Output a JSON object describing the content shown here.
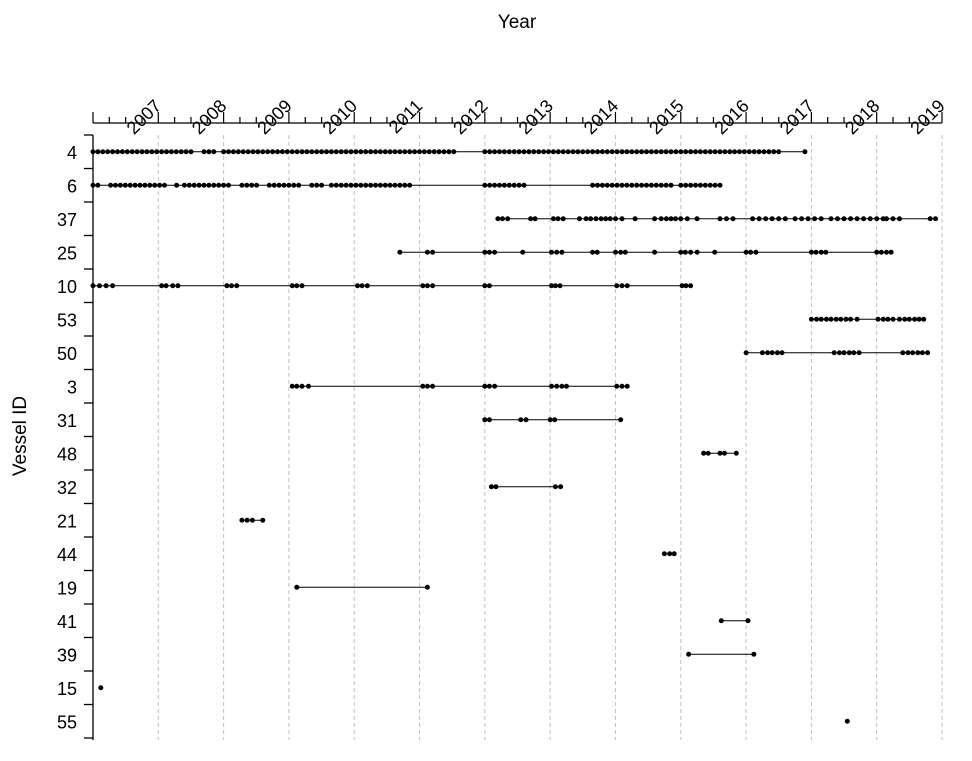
{
  "chart_data": {
    "type": "scatter",
    "subtype": "event-timeline (dot strip per vessel)",
    "title": "",
    "xlabel": "Year",
    "ylabel": "Vessel ID",
    "x_axis_position": "top",
    "xlim": [
      2006.0,
      2019.0
    ],
    "x_ticks": [
      2007,
      2008,
      2009,
      2010,
      2011,
      2012,
      2013,
      2014,
      2015,
      2016,
      2017,
      2018,
      2019
    ],
    "x_minor_ticks_per_year": 4,
    "grid": {
      "vertical": true,
      "style": "dashed",
      "color": "#c0c0c0"
    },
    "categories": [
      "4",
      "6",
      "37",
      "25",
      "10",
      "53",
      "50",
      "3",
      "31",
      "48",
      "32",
      "21",
      "44",
      "19",
      "41",
      "39",
      "15",
      "55"
    ],
    "marker": {
      "shape": "circle",
      "color": "#000000",
      "size": 5
    },
    "note": "Each dot is an observation date (decimal year). Short horizontal lines connect consecutive dots within a row.",
    "series": [
      {
        "name": "4",
        "segments": [
          [
            2006.0,
            2007.5
          ],
          [
            2007.7,
            2007.85
          ],
          [
            2008.0,
            2011.55
          ],
          [
            2012.0,
            2016.55
          ],
          [
            2016.9,
            2016.97
          ]
        ]
      },
      {
        "name": "6",
        "segments": [
          [
            2006.0,
            2006.12
          ],
          [
            2006.27,
            2007.15
          ],
          [
            2007.28,
            2007.28
          ],
          [
            2007.4,
            2008.12
          ],
          [
            2008.28,
            2008.55
          ],
          [
            2008.7,
            2009.15
          ],
          [
            2009.35,
            2009.5
          ],
          [
            2009.65,
            2010.85
          ],
          [
            2012.0,
            2012.62
          ],
          [
            2013.65,
            2014.88
          ],
          [
            2015.0,
            2015.62
          ]
        ]
      },
      {
        "name": "37",
        "points": [
          2012.2,
          2012.27,
          2012.35,
          2012.7,
          2012.77,
          2013.05,
          2013.12,
          2013.2,
          2013.45,
          2013.55,
          2013.62,
          2013.7,
          2013.78,
          2013.85,
          2013.92,
          2014.0,
          2014.1,
          2014.3,
          2014.6,
          2014.7,
          2014.78,
          2014.85,
          2014.92,
          2015.0,
          2015.1,
          2015.25,
          2015.6,
          2015.7,
          2015.8,
          2016.1,
          2016.2,
          2016.3,
          2016.4,
          2016.5,
          2016.6,
          2016.75,
          2016.85,
          2016.95,
          2017.05,
          2017.15,
          2017.3,
          2017.4,
          2017.5,
          2017.6,
          2017.7,
          2017.8,
          2017.9,
          2018.0,
          2018.1,
          2018.15,
          2018.25,
          2018.35,
          2018.82,
          2018.9
        ]
      },
      {
        "name": "25",
        "points": [
          2010.7,
          2011.12,
          2011.2,
          2012.0,
          2012.07,
          2012.15,
          2012.58,
          2013.02,
          2013.1,
          2013.18,
          2013.65,
          2013.72,
          2014.0,
          2014.08,
          2014.15,
          2014.6,
          2015.0,
          2015.07,
          2015.15,
          2015.25,
          2015.52,
          2016.0,
          2016.07,
          2016.15,
          2017.0,
          2017.07,
          2017.15,
          2017.22,
          2018.0,
          2018.07,
          2018.15,
          2018.22
        ]
      },
      {
        "name": "10",
        "points": [
          2006.0,
          2006.1,
          2006.2,
          2006.3,
          2007.05,
          2007.12,
          2007.22,
          2007.3,
          2008.05,
          2008.12,
          2008.2,
          2009.05,
          2009.12,
          2009.2,
          2010.05,
          2010.12,
          2010.2,
          2011.05,
          2011.12,
          2011.2,
          2012.0,
          2012.07,
          2013.02,
          2013.08,
          2013.15,
          2014.02,
          2014.1,
          2014.18,
          2015.02,
          2015.08,
          2015.15
        ]
      },
      {
        "name": "53",
        "points": [
          2017.0,
          2017.08,
          2017.15,
          2017.23,
          2017.3,
          2017.38,
          2017.45,
          2017.53,
          2017.6,
          2017.7,
          2018.02,
          2018.1,
          2018.17,
          2018.25,
          2018.35,
          2018.43,
          2018.5,
          2018.58,
          2018.65,
          2018.72
        ]
      },
      {
        "name": "50",
        "points": [
          2016.0,
          2016.25,
          2016.33,
          2016.4,
          2016.48,
          2016.55,
          2017.35,
          2017.43,
          2017.5,
          2017.58,
          2017.65,
          2017.73,
          2018.4,
          2018.48,
          2018.55,
          2018.63,
          2018.7,
          2018.78
        ]
      },
      {
        "name": "3",
        "points": [
          2009.05,
          2009.12,
          2009.2,
          2009.3,
          2011.05,
          2011.12,
          2011.2,
          2012.0,
          2012.07,
          2012.15,
          2013.02,
          2013.1,
          2013.18,
          2013.25,
          2014.02,
          2014.1,
          2014.18
        ]
      },
      {
        "name": "31",
        "points": [
          2012.0,
          2012.07,
          2012.55,
          2012.63,
          2013.0,
          2013.07,
          2014.08
        ]
      },
      {
        "name": "48",
        "points": [
          2015.35,
          2015.42,
          2015.6,
          2015.67,
          2015.85
        ]
      },
      {
        "name": "32",
        "points": [
          2012.1,
          2012.17,
          2013.08,
          2013.16
        ]
      },
      {
        "name": "21",
        "points": [
          2008.28,
          2008.36,
          2008.44,
          2008.6
        ]
      },
      {
        "name": "44",
        "points": [
          2014.75,
          2014.83,
          2014.9
        ]
      },
      {
        "name": "19",
        "points": [
          2009.12,
          2011.12
        ]
      },
      {
        "name": "41",
        "points": [
          2015.62,
          2016.03
        ]
      },
      {
        "name": "15",
        "points": [
          2006.12
        ]
      },
      {
        "name": "39",
        "points": [
          2015.12,
          2016.12
        ]
      },
      {
        "name": "55",
        "points": [
          2017.55
        ]
      }
    ]
  }
}
